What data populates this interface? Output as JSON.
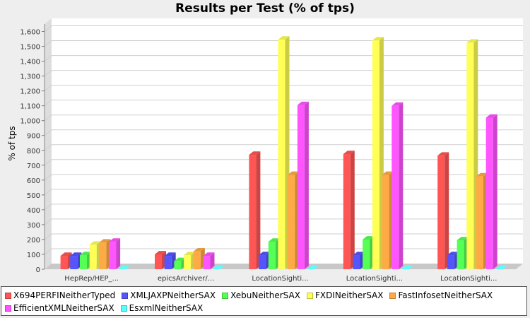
{
  "chart_data": {
    "type": "bar",
    "title": "Results per Test (% of tps)",
    "ylabel": "% of tps",
    "xlabel": "",
    "ylim": [
      0,
      1650
    ],
    "yticks": [
      0,
      100,
      200,
      300,
      400,
      500,
      600,
      700,
      800,
      900,
      1000,
      1100,
      1200,
      1300,
      1400,
      1500,
      1600
    ],
    "ytick_labels": [
      "0",
      "100",
      "200",
      "300",
      "400",
      "500",
      "600",
      "700",
      "800",
      "900",
      "1,000",
      "1,100",
      "1,200",
      "1,300",
      "1,400",
      "1,500",
      "1,600"
    ],
    "grid": true,
    "legend_position": "bottom",
    "categories": [
      "HepRep/HEP_...",
      "epicsArchiver/...",
      "LocationSighti...",
      "LocationSighti...",
      "LocationSighti..."
    ],
    "series": [
      {
        "name": "X694PERFINeitherTyped",
        "color": "#ff5555",
        "values": [
          90,
          100,
          770,
          775,
          765
        ]
      },
      {
        "name": "XMLJAXPNeitherSAX",
        "color": "#5555ff",
        "values": [
          90,
          90,
          95,
          95,
          95
        ]
      },
      {
        "name": "XebuNeitherSAX",
        "color": "#55ff55",
        "values": [
          95,
          55,
          185,
          200,
          195
        ]
      },
      {
        "name": "FXDINeitherSAX",
        "color": "#ffff55",
        "values": [
          165,
          95,
          1545,
          1540,
          1525
        ]
      },
      {
        "name": "FastInfosetNeitherSAX",
        "color": "#ffaa44",
        "values": [
          180,
          120,
          635,
          635,
          625
        ]
      },
      {
        "name": "EfficientXMLNeitherSAX",
        "color": "#ff55ff",
        "values": [
          185,
          90,
          1105,
          1100,
          1020
        ]
      },
      {
        "name": "EsxmlNeitherSAX",
        "color": "#55ffff",
        "values": [
          0,
          0,
          0,
          0,
          0
        ]
      }
    ]
  }
}
